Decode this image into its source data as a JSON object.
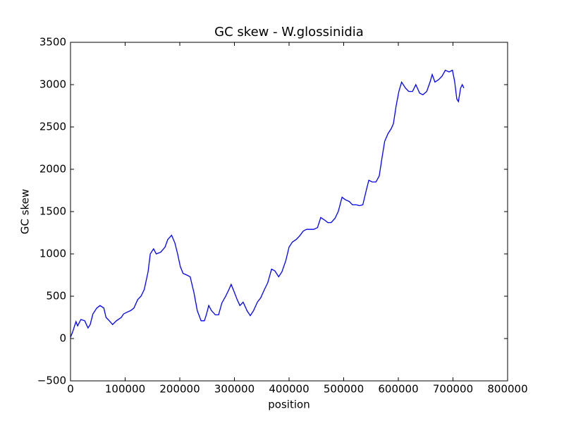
{
  "chart_data": {
    "type": "line",
    "title": "GC skew - W.glossinidia",
    "x_label": "position",
    "y_label": "GC skew",
    "x": [
      0,
      4000,
      10000,
      13000,
      19000,
      26000,
      32000,
      36000,
      41000,
      48000,
      54000,
      61000,
      65000,
      71000,
      77000,
      84000,
      93000,
      97000,
      103000,
      110000,
      116000,
      123000,
      129000,
      135000,
      142000,
      146000,
      152000,
      157000,
      165000,
      173000,
      178000,
      185000,
      191000,
      196000,
      201000,
      206000,
      213000,
      219000,
      226000,
      232000,
      239000,
      245000,
      249000,
      253000,
      258000,
      265000,
      271000,
      277000,
      284000,
      290000,
      294000,
      299000,
      305000,
      310000,
      316000,
      323000,
      329000,
      335000,
      342000,
      348000,
      355000,
      361000,
      368000,
      374000,
      381000,
      387000,
      394000,
      400000,
      406000,
      413000,
      419000,
      426000,
      432000,
      439000,
      445000,
      452000,
      458000,
      465000,
      471000,
      477000,
      484000,
      490000,
      497000,
      503000,
      510000,
      516000,
      523000,
      529000,
      535000,
      542000,
      546000,
      552000,
      559000,
      565000,
      570000,
      575000,
      581000,
      587000,
      591000,
      596000,
      601000,
      606000,
      613000,
      619000,
      626000,
      632000,
      639000,
      645000,
      652000,
      658000,
      662000,
      667000,
      674000,
      680000,
      686000,
      693000,
      699000,
      703000,
      707000,
      710000,
      714000,
      717000,
      720000
    ],
    "series": [
      {
        "name": "GC skew",
        "color": "#0000ff",
        "values": [
          15,
          80,
          200,
          150,
          225,
          210,
          125,
          165,
          290,
          360,
          390,
          360,
          250,
          210,
          165,
          210,
          250,
          290,
          310,
          330,
          360,
          460,
          500,
          580,
          790,
          1000,
          1060,
          1000,
          1020,
          1080,
          1170,
          1220,
          1130,
          1000,
          850,
          770,
          750,
          730,
          540,
          330,
          210,
          210,
          290,
          390,
          330,
          280,
          280,
          420,
          500,
          580,
          640,
          560,
          460,
          390,
          430,
          330,
          270,
          330,
          430,
          480,
          580,
          660,
          820,
          800,
          730,
          790,
          920,
          1080,
          1140,
          1170,
          1210,
          1270,
          1290,
          1290,
          1290,
          1310,
          1430,
          1400,
          1370,
          1370,
          1420,
          1500,
          1670,
          1640,
          1620,
          1580,
          1580,
          1570,
          1580,
          1770,
          1870,
          1850,
          1850,
          1920,
          2130,
          2330,
          2420,
          2480,
          2540,
          2750,
          2920,
          3030,
          2960,
          2920,
          2920,
          3000,
          2900,
          2880,
          2920,
          3030,
          3120,
          3030,
          3060,
          3100,
          3170,
          3150,
          3170,
          3040,
          2830,
          2800,
          2960,
          3000,
          2960
        ]
      }
    ],
    "xlim": [
      0,
      800000
    ],
    "xticks": [
      0,
      100000,
      200000,
      300000,
      400000,
      500000,
      600000,
      700000,
      800000
    ],
    "ylim": [
      -500,
      3500
    ],
    "yticks": [
      {
        "value": -500,
        "label": "−500"
      },
      0,
      500,
      1000,
      1500,
      2000,
      2500,
      3000,
      3500
    ],
    "grid": false
  }
}
